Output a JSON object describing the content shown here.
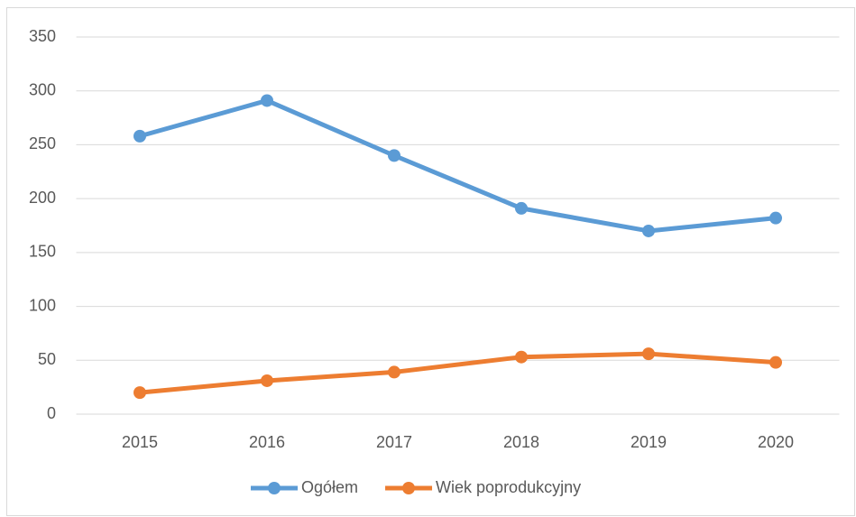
{
  "chart_data": {
    "type": "line",
    "categories": [
      "2015",
      "2016",
      "2017",
      "2018",
      "2019",
      "2020"
    ],
    "series": [
      {
        "name": "Ogółem",
        "color": "#5b9bd5",
        "values": [
          258,
          291,
          240,
          191,
          170,
          182
        ]
      },
      {
        "name": "Wiek poprodukcyjny",
        "color": "#ed7d31",
        "values": [
          20,
          31,
          39,
          53,
          56,
          48
        ]
      }
    ],
    "ylim": [
      0,
      350
    ],
    "yticks": [
      0,
      50,
      100,
      150,
      200,
      250,
      300,
      350
    ],
    "grid": true,
    "legend": "bottom"
  }
}
